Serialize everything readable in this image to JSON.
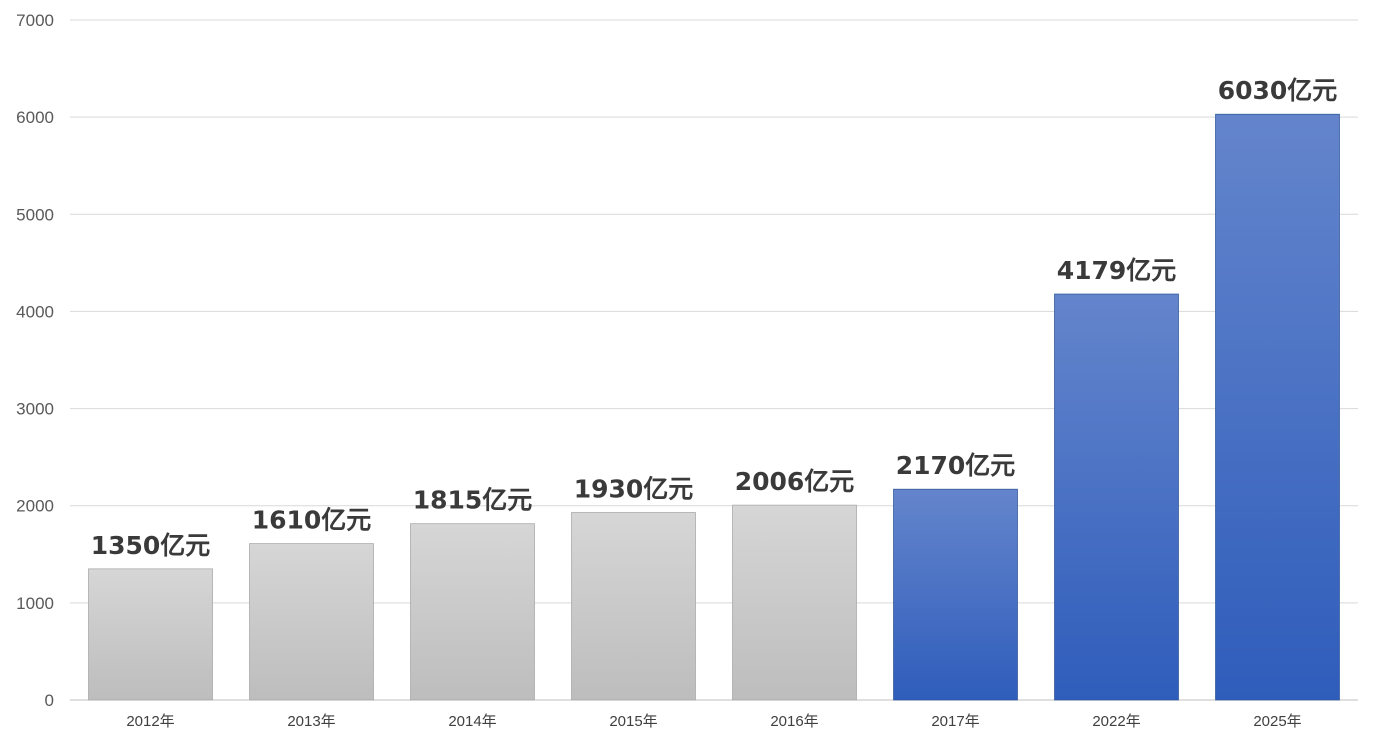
{
  "chart_data": {
    "type": "bar",
    "title": "",
    "xlabel": "",
    "ylabel": "",
    "categories": [
      "2012年",
      "2013年",
      "2014年",
      "2015年",
      "2016年",
      "2017年",
      "2022年",
      "2025年"
    ],
    "values": [
      1350,
      1610,
      1815,
      1930,
      2006,
      2170,
      4179,
      6030
    ],
    "data_labels": [
      "1350亿元",
      "1610亿元",
      "1815亿元",
      "1930亿元",
      "2006亿元",
      "2170亿元",
      "4179亿元",
      "6030亿元"
    ],
    "bar_styles": [
      "gray",
      "gray",
      "gray",
      "gray",
      "gray",
      "blue",
      "blue",
      "blue"
    ],
    "ylim": [
      0,
      7000
    ],
    "yticks": [
      0,
      1000,
      2000,
      3000,
      4000,
      5000,
      6000,
      7000
    ],
    "grid": true,
    "legend": "none",
    "colors": {
      "gray_top": "#d6d6d6",
      "gray_bottom": "#bdbdbd",
      "gray_stroke": "#a6a6a6",
      "blue_top": "#6485cc",
      "blue_bottom": "#2f5dbb",
      "blue_stroke": "#2f5597"
    }
  }
}
